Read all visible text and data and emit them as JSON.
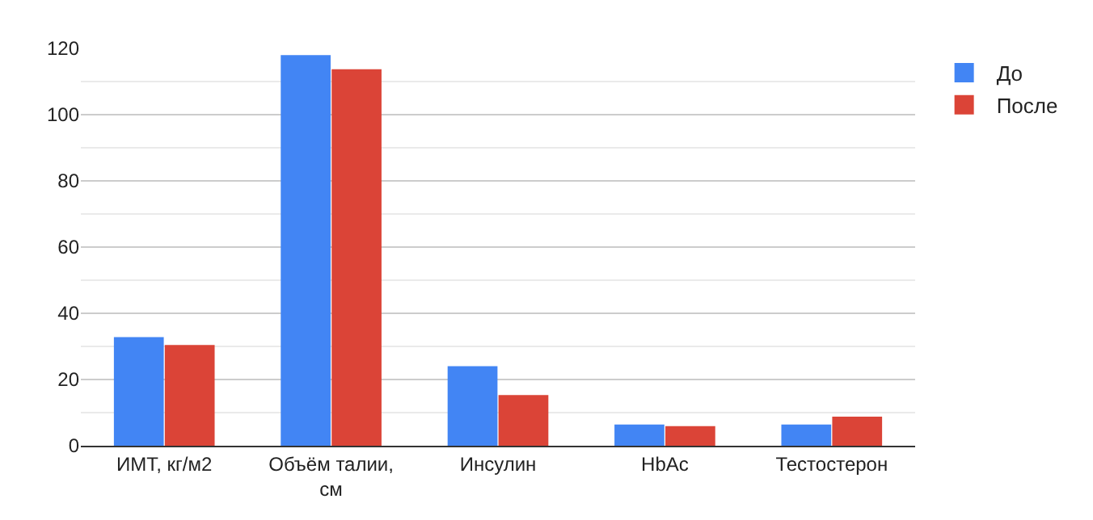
{
  "chart_data": {
    "type": "bar",
    "categories": [
      "ИМТ, кг/м2",
      "Объём талии, см",
      "Инсулин",
      "HbAc",
      "Тестостерон"
    ],
    "series": [
      {
        "name": "До",
        "color": "#4285f4",
        "values": [
          32.8,
          118,
          24,
          6.4,
          6.4
        ]
      },
      {
        "name": "После",
        "color": "#db4437",
        "values": [
          30.4,
          113.7,
          15.3,
          5.9,
          8.8
        ]
      }
    ],
    "ylim": [
      0,
      120
    ],
    "yticks": [
      0,
      20,
      40,
      60,
      80,
      100,
      120
    ],
    "grid": "y",
    "legend": "top right"
  }
}
